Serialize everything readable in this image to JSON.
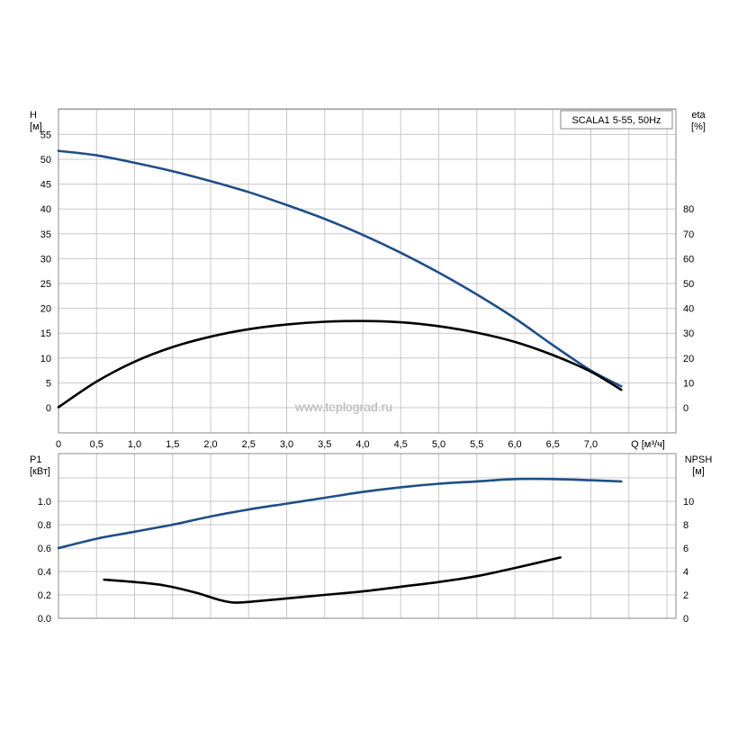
{
  "watermark": "www.teplograd.ru",
  "colors": {
    "blue": "#1f4e87",
    "black": "#000000",
    "grid": "#c8c8c8",
    "frame": "#888888"
  },
  "chart_data": [
    {
      "type": "line",
      "legend": "SCALA1 5-55, 50Hz",
      "legend_position": "top-right",
      "grid": true,
      "y_left": {
        "label": "H",
        "unit": "[м]",
        "range": [
          0,
          60
        ],
        "ticks": [
          0,
          5,
          10,
          15,
          20,
          25,
          30,
          35,
          40,
          45,
          50,
          55
        ]
      },
      "y_right": {
        "label": "eta",
        "unit": "[%]",
        "range": [
          0,
          120
        ],
        "ticks": [
          0,
          10,
          20,
          30,
          40,
          50,
          60,
          70,
          80
        ]
      },
      "x": {
        "label": "Q [м³/ч]",
        "range": [
          0,
          8.1
        ],
        "ticks": [
          "0",
          "0,5",
          "1,0",
          "1,5",
          "2,0",
          "2,5",
          "3,0",
          "3,5",
          "4,0",
          "4,5",
          "5,0",
          "5,5",
          "6,0",
          "6,5",
          "7,0"
        ],
        "tick_values": [
          0,
          0.5,
          1.0,
          1.5,
          2.0,
          2.5,
          3.0,
          3.5,
          4.0,
          4.5,
          5.0,
          5.5,
          6.0,
          6.5,
          7.0
        ]
      },
      "series": [
        {
          "axis": "left",
          "color": "#1f4e87",
          "points": [
            [
              0,
              51.7
            ],
            [
              0.5,
              50.8
            ],
            [
              1.0,
              49.3
            ],
            [
              1.5,
              47.6
            ],
            [
              2.0,
              45.6
            ],
            [
              2.5,
              43.4
            ],
            [
              3.0,
              40.8
            ],
            [
              3.5,
              38.0
            ],
            [
              4.0,
              34.8
            ],
            [
              4.5,
              31.2
            ],
            [
              5.0,
              27.2
            ],
            [
              5.5,
              22.8
            ],
            [
              6.0,
              18.0
            ],
            [
              6.5,
              12.6
            ],
            [
              7.0,
              7.5
            ],
            [
              7.4,
              4.3
            ]
          ]
        },
        {
          "axis": "right",
          "color": "#000000",
          "points": [
            [
              0,
              0.2
            ],
            [
              0.5,
              10.5
            ],
            [
              1.0,
              18.5
            ],
            [
              1.5,
              24.4
            ],
            [
              2.0,
              28.6
            ],
            [
              2.5,
              31.6
            ],
            [
              3.0,
              33.5
            ],
            [
              3.5,
              34.6
            ],
            [
              4.0,
              34.9
            ],
            [
              4.5,
              34.4
            ],
            [
              5.0,
              32.8
            ],
            [
              5.5,
              30.2
            ],
            [
              6.0,
              26.5
            ],
            [
              6.5,
              21.2
            ],
            [
              7.0,
              14.5
            ],
            [
              7.4,
              7.2
            ]
          ]
        }
      ]
    },
    {
      "type": "line",
      "grid": true,
      "y_left": {
        "label": "P1",
        "unit": "[кВт]",
        "range": [
          0,
          1.2
        ],
        "ticks": [
          "0.0",
          "0.2",
          "0.4",
          "0.6",
          "0.8",
          "1.0"
        ],
        "tick_values": [
          0,
          0.2,
          0.4,
          0.6,
          0.8,
          1.0
        ]
      },
      "y_right": {
        "label": "NPSH",
        "unit": "[м]",
        "range": [
          0,
          12
        ],
        "ticks": [
          0,
          2,
          4,
          6,
          8,
          10
        ]
      },
      "x": {
        "range": [
          0,
          8.1
        ]
      },
      "series": [
        {
          "axis": "left",
          "color": "#1f4e87",
          "points": [
            [
              0,
              0.6
            ],
            [
              0.5,
              0.68
            ],
            [
              1.0,
              0.74
            ],
            [
              1.5,
              0.8
            ],
            [
              2.0,
              0.87
            ],
            [
              2.5,
              0.93
            ],
            [
              3.0,
              0.98
            ],
            [
              3.5,
              1.03
            ],
            [
              4.0,
              1.08
            ],
            [
              4.5,
              1.12
            ],
            [
              5.0,
              1.15
            ],
            [
              5.5,
              1.17
            ],
            [
              6.0,
              1.19
            ],
            [
              6.5,
              1.19
            ],
            [
              7.0,
              1.18
            ],
            [
              7.4,
              1.17
            ]
          ]
        },
        {
          "axis": "right",
          "color": "#000000",
          "points": [
            [
              0.6,
              3.3
            ],
            [
              1.0,
              3.1
            ],
            [
              1.4,
              2.8
            ],
            [
              1.8,
              2.2
            ],
            [
              2.1,
              1.6
            ],
            [
              2.3,
              1.35
            ],
            [
              2.5,
              1.4
            ],
            [
              3.0,
              1.7
            ],
            [
              3.5,
              2.0
            ],
            [
              4.0,
              2.3
            ],
            [
              4.5,
              2.7
            ],
            [
              5.0,
              3.1
            ],
            [
              5.5,
              3.6
            ],
            [
              6.0,
              4.3
            ],
            [
              6.6,
              5.2
            ]
          ]
        }
      ]
    }
  ]
}
